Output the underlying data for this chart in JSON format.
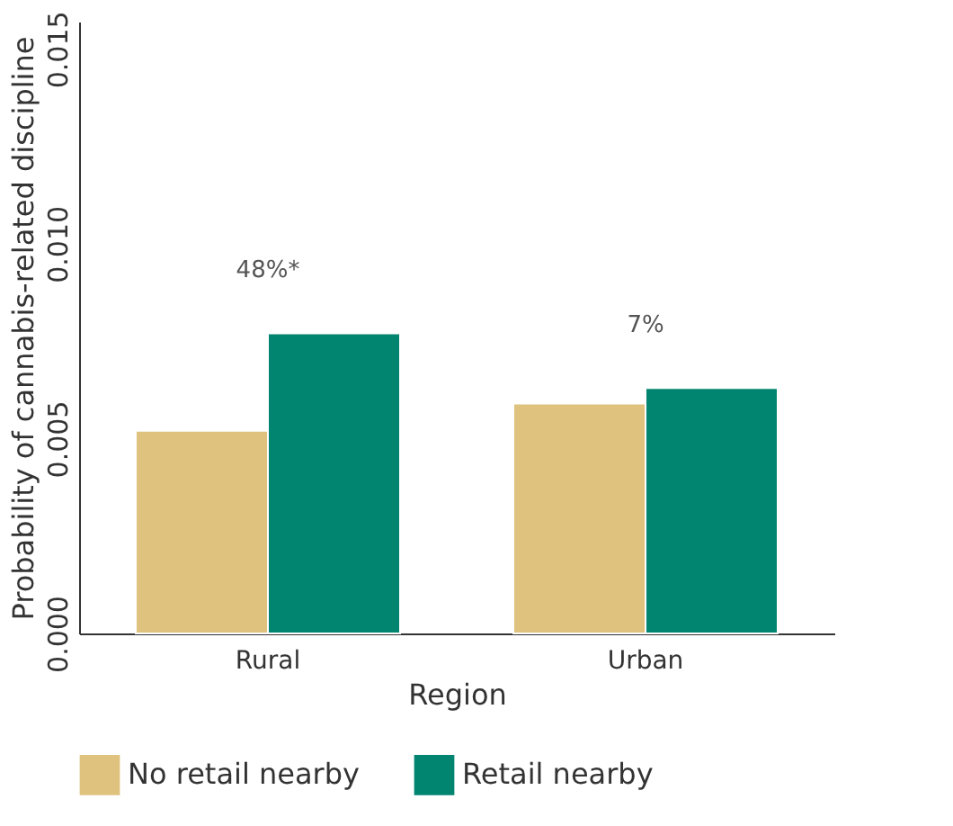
{
  "chart_data": {
    "type": "bar",
    "xlabel": "Region",
    "ylabel": "Probability of cannabis-related discipline",
    "categories": [
      "Rural",
      "Urban"
    ],
    "series": [
      {
        "name": "No retail nearby",
        "color": "#dfc27d",
        "values": [
          0.0052,
          0.0059
        ]
      },
      {
        "name": "Retail nearby",
        "color": "#018571",
        "values": [
          0.0077,
          0.0063
        ]
      }
    ],
    "ylim": [
      0,
      0.0157
    ],
    "yticks": [
      {
        "value": 0,
        "label": "0.000"
      },
      {
        "value": 0.005,
        "label": "0.005"
      },
      {
        "value": 0.01,
        "label": "0.010"
      },
      {
        "value": 0.015,
        "label": "0.015"
      }
    ],
    "annotations": [
      "48%*",
      "7%"
    ],
    "grid": false,
    "legend": "bottom"
  }
}
